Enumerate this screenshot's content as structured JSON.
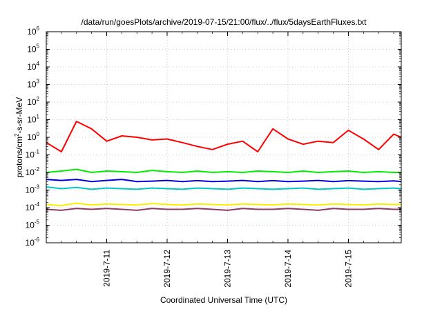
{
  "chart_data": {
    "type": "line",
    "title": "/data/run/goesPlots/archive/2019-07-15/21:00/flux/../flux/5daysEarthFluxes.txt",
    "xlabel": "Coordinated Universal Time (UTC)",
    "ylabel_parts": {
      "base": "protons/cm",
      "exp": "2",
      "rest": "-s-sr-MeV"
    },
    "yscale": "log",
    "ylim": [
      1e-06,
      1000000.0
    ],
    "yticks": [
      {
        "base": "10",
        "exp": "-6"
      },
      {
        "base": "10",
        "exp": "-5"
      },
      {
        "base": "10",
        "exp": "-4"
      },
      {
        "base": "10",
        "exp": "-3"
      },
      {
        "base": "10",
        "exp": "-2"
      },
      {
        "base": "10",
        "exp": "-1"
      },
      {
        "base": "10",
        "exp": "0"
      },
      {
        "base": "10",
        "exp": "1"
      },
      {
        "base": "10",
        "exp": "2"
      },
      {
        "base": "10",
        "exp": "3"
      },
      {
        "base": "10",
        "exp": "4"
      },
      {
        "base": "10",
        "exp": "5"
      },
      {
        "base": "10",
        "exp": "6"
      }
    ],
    "xlim": [
      "2019-07-10 00:00",
      "2019-07-15 21:00"
    ],
    "xticks": [
      "2019-7-11",
      "2019-7-12",
      "2019-7-13",
      "2019-7-14",
      "2019-7-15"
    ],
    "grid": true,
    "legend": "none",
    "x": [
      "2019-07-10 00:00",
      "2019-07-10 06:00",
      "2019-07-10 12:00",
      "2019-07-10 18:00",
      "2019-07-11 00:00",
      "2019-07-11 06:00",
      "2019-07-11 12:00",
      "2019-07-11 18:00",
      "2019-07-12 00:00",
      "2019-07-12 06:00",
      "2019-07-12 12:00",
      "2019-07-12 18:00",
      "2019-07-13 00:00",
      "2019-07-13 06:00",
      "2019-07-13 12:00",
      "2019-07-13 18:00",
      "2019-07-14 00:00",
      "2019-07-14 06:00",
      "2019-07-14 12:00",
      "2019-07-14 18:00",
      "2019-07-15 00:00",
      "2019-07-15 06:00",
      "2019-07-15 12:00",
      "2019-07-15 18:00",
      "2019-07-15 21:00"
    ],
    "series": [
      {
        "color": "#ff0000",
        "values": [
          0.5,
          0.15,
          8,
          3,
          0.6,
          1.2,
          1.0,
          0.7,
          0.8,
          0.5,
          0.3,
          0.2,
          0.4,
          0.6,
          0.15,
          3,
          0.8,
          0.4,
          0.6,
          0.5,
          2.5,
          0.8,
          0.2,
          1.5,
          1.0
        ]
      },
      {
        "color": "#00ee00",
        "values": [
          0.01,
          0.012,
          0.015,
          0.01,
          0.012,
          0.011,
          0.01,
          0.013,
          0.011,
          0.01,
          0.012,
          0.01,
          0.011,
          0.01,
          0.012,
          0.011,
          0.01,
          0.012,
          0.01,
          0.011,
          0.012,
          0.01,
          0.011,
          0.01,
          0.01
        ]
      },
      {
        "color": "#0000dd",
        "values": [
          0.004,
          0.0035,
          0.004,
          0.003,
          0.0035,
          0.004,
          0.003,
          0.0032,
          0.0035,
          0.003,
          0.0034,
          0.003,
          0.0032,
          0.0035,
          0.003,
          0.0034,
          0.003,
          0.0032,
          0.0035,
          0.003,
          0.0034,
          0.0032,
          0.003,
          0.0033,
          0.003
        ]
      },
      {
        "color": "#00c8c8",
        "values": [
          0.0015,
          0.0012,
          0.0014,
          0.0011,
          0.0013,
          0.0012,
          0.0011,
          0.0013,
          0.0012,
          0.0011,
          0.0013,
          0.0012,
          0.0011,
          0.0013,
          0.0012,
          0.0011,
          0.0012,
          0.0013,
          0.0011,
          0.0012,
          0.0013,
          0.0011,
          0.0012,
          0.0013,
          0.0012
        ]
      },
      {
        "color": "#ffee00",
        "values": [
          0.00015,
          0.00013,
          0.00018,
          0.00014,
          0.00016,
          0.00015,
          0.00014,
          0.00017,
          0.00015,
          0.00014,
          0.00016,
          0.00015,
          0.00014,
          0.00016,
          0.00015,
          0.00014,
          0.00016,
          0.00015,
          0.00014,
          0.00016,
          0.00015,
          0.00014,
          0.00016,
          0.00015,
          0.00015
        ]
      },
      {
        "color": "#8b3a62",
        "values": [
          8e-05,
          7e-05,
          9e-05,
          8e-05,
          9e-05,
          8e-05,
          7e-05,
          9e-05,
          8e-05,
          8e-05,
          9e-05,
          8e-05,
          7e-05,
          9e-05,
          8e-05,
          8e-05,
          9e-05,
          8e-05,
          7e-05,
          9e-05,
          8e-05,
          8e-05,
          9e-05,
          8e-05,
          8e-05
        ]
      }
    ]
  }
}
